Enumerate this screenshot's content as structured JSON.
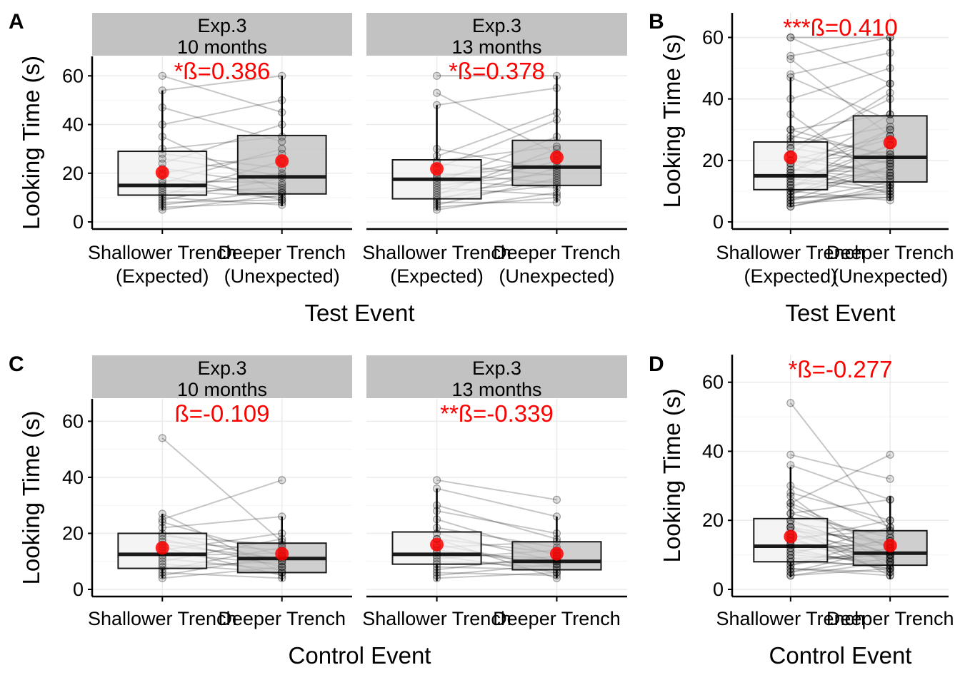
{
  "colors": {
    "strip_bg": "#c2c2c2",
    "box_fill_a": "#f0f0f0",
    "box_fill_b": "#bfbfbf",
    "mean_point": "#ff0000",
    "stat_text": "#ff0000",
    "gridline": "#ebebeb"
  },
  "chart_data": [
    {
      "id": "A",
      "type": "boxplot",
      "letter": "A",
      "xlabel": "Test Event",
      "ylabel": "Looking Time (s)",
      "ylim": [
        0,
        68
      ],
      "yticks": [
        0,
        20,
        40,
        60
      ],
      "categories": [
        "Shallower Trench\n(Expected)",
        "Deeper Trench\n(Unexpected)"
      ],
      "facets": [
        {
          "strip": [
            "Exp.3",
            "10 months"
          ],
          "annotation": "*ß=0.386",
          "boxes": [
            {
              "q1": 11,
              "median": 15,
              "q3": 29,
              "whisker_low": 5,
              "whisker_high": 54,
              "mean": 20.3
            },
            {
              "q1": 11.5,
              "median": 18.5,
              "q3": 35.5,
              "whisker_low": 6.5,
              "whisker_high": 60,
              "mean": 25
            }
          ],
          "pairs": [
            [
              5,
              11
            ],
            [
              6,
              8
            ],
            [
              7,
              13
            ],
            [
              8,
              9
            ],
            [
              9,
              18
            ],
            [
              10,
              7
            ],
            [
              11,
              25
            ],
            [
              12,
              14
            ],
            [
              13,
              10
            ],
            [
              14,
              20
            ],
            [
              15,
              12
            ],
            [
              16,
              30
            ],
            [
              17,
              16
            ],
            [
              19,
              9
            ],
            [
              20,
              28
            ],
            [
              22,
              15
            ],
            [
              24,
              40
            ],
            [
              26,
              19
            ],
            [
              28,
              22
            ],
            [
              30,
              35
            ],
            [
              35,
              12
            ],
            [
              40,
              50
            ],
            [
              47,
              33
            ],
            [
              54,
              60
            ],
            [
              60,
              45
            ]
          ]
        },
        {
          "strip": [
            "Exp.3",
            "13 months"
          ],
          "annotation": "*ß=0.378",
          "boxes": [
            {
              "q1": 9.5,
              "median": 17.5,
              "q3": 25.5,
              "whisker_low": 5,
              "whisker_high": 48,
              "mean": 21.8
            },
            {
              "q1": 15,
              "median": 22.5,
              "q3": 33.5,
              "whisker_low": 8,
              "whisker_high": 60,
              "mean": 26.5
            }
          ],
          "pairs": [
            [
              5,
              12
            ],
            [
              6,
              10
            ],
            [
              7,
              18
            ],
            [
              8,
              8
            ],
            [
              9,
              22
            ],
            [
              10,
              15
            ],
            [
              11,
              30
            ],
            [
              12,
              17
            ],
            [
              13,
              25
            ],
            [
              14,
              11
            ],
            [
              15,
              20
            ],
            [
              16,
              35
            ],
            [
              17,
              14
            ],
            [
              18,
              27
            ],
            [
              19,
              23
            ],
            [
              20,
              16
            ],
            [
              22,
              42
            ],
            [
              24,
              19
            ],
            [
              25,
              31
            ],
            [
              27,
              45
            ],
            [
              30,
              21
            ],
            [
              48,
              55
            ],
            [
              53,
              28
            ],
            [
              60,
              60
            ]
          ]
        }
      ]
    },
    {
      "id": "B",
      "type": "boxplot",
      "letter": "B",
      "xlabel": "Test Event",
      "ylabel": "Looking Time (s)",
      "ylim": [
        0,
        68
      ],
      "yticks": [
        0,
        20,
        40,
        60
      ],
      "categories": [
        "Shallower Trench\n(Expected)",
        "Deeper Trench\n(Unexpected)"
      ],
      "facets": [
        {
          "strip": [],
          "annotation": "***ß=0.410",
          "boxes": [
            {
              "q1": 10.5,
              "median": 15,
              "q3": 26,
              "whisker_low": 5,
              "whisker_high": 47,
              "mean": 21
            },
            {
              "q1": 13,
              "median": 21,
              "q3": 34.5,
              "whisker_low": 7,
              "whisker_high": 60,
              "mean": 25.8
            }
          ],
          "pairs": [
            [
              5,
              11
            ],
            [
              6,
              8
            ],
            [
              7,
              13
            ],
            [
              8,
              9
            ],
            [
              9,
              18
            ],
            [
              10,
              7
            ],
            [
              11,
              25
            ],
            [
              12,
              14
            ],
            [
              13,
              10
            ],
            [
              14,
              20
            ],
            [
              15,
              12
            ],
            [
              16,
              30
            ],
            [
              17,
              16
            ],
            [
              19,
              9
            ],
            [
              20,
              28
            ],
            [
              22,
              15
            ],
            [
              24,
              40
            ],
            [
              26,
              19
            ],
            [
              28,
              22
            ],
            [
              30,
              35
            ],
            [
              35,
              12
            ],
            [
              40,
              50
            ],
            [
              47,
              33
            ],
            [
              54,
              60
            ],
            [
              60,
              45
            ],
            [
              5,
              12
            ],
            [
              6,
              10
            ],
            [
              7,
              18
            ],
            [
              8,
              8
            ],
            [
              9,
              22
            ],
            [
              10,
              15
            ],
            [
              11,
              30
            ],
            [
              12,
              17
            ],
            [
              13,
              25
            ],
            [
              14,
              11
            ],
            [
              15,
              20
            ],
            [
              16,
              35
            ],
            [
              17,
              14
            ],
            [
              18,
              27
            ],
            [
              19,
              23
            ],
            [
              20,
              16
            ],
            [
              22,
              42
            ],
            [
              24,
              19
            ],
            [
              25,
              31
            ],
            [
              27,
              45
            ],
            [
              30,
              21
            ],
            [
              48,
              55
            ],
            [
              53,
              28
            ],
            [
              60,
              60
            ]
          ]
        }
      ]
    },
    {
      "id": "C",
      "type": "boxplot",
      "letter": "C",
      "xlabel": "Control Event",
      "ylabel": "Looking Time (s)",
      "ylim": [
        0,
        68
      ],
      "yticks": [
        0,
        20,
        40,
        60
      ],
      "categories": [
        "Shallower Trench",
        "Deeper Trench"
      ],
      "facets": [
        {
          "strip": [
            "Exp.3",
            "10 months"
          ],
          "annotation": "ß=-0.109",
          "boxes": [
            {
              "q1": 7.5,
              "median": 12.5,
              "q3": 20,
              "whisker_low": 4,
              "whisker_high": 27,
              "mean": 14.8
            },
            {
              "q1": 6,
              "median": 11,
              "q3": 16.5,
              "whisker_low": 3,
              "whisker_high": 26,
              "mean": 12.7
            }
          ],
          "pairs": [
            [
              4,
              8
            ],
            [
              5,
              12
            ],
            [
              6,
              4
            ],
            [
              7,
              15
            ],
            [
              8,
              10
            ],
            [
              9,
              6
            ],
            [
              10,
              18
            ],
            [
              11,
              7
            ],
            [
              12,
              13
            ],
            [
              13,
              9
            ],
            [
              14,
              20
            ],
            [
              15,
              5
            ],
            [
              16,
              11
            ],
            [
              17,
              14
            ],
            [
              18,
              8
            ],
            [
              19,
              16
            ],
            [
              20,
              10
            ],
            [
              22,
              26
            ],
            [
              24,
              12
            ],
            [
              27,
              6
            ],
            [
              54,
              17
            ],
            [
              25,
              39
            ]
          ]
        },
        {
          "strip": [
            "Exp.3",
            "13 months"
          ],
          "annotation": "**ß=-0.339",
          "boxes": [
            {
              "q1": 9,
              "median": 12.5,
              "q3": 20.5,
              "whisker_low": 3,
              "whisker_high": 36,
              "mean": 16
            },
            {
              "q1": 7,
              "median": 10,
              "q3": 17,
              "whisker_low": 4,
              "whisker_high": 26,
              "mean": 12.7
            }
          ],
          "pairs": [
            [
              4,
              6
            ],
            [
              5,
              9
            ],
            [
              6,
              5
            ],
            [
              7,
              12
            ],
            [
              8,
              7
            ],
            [
              9,
              10
            ],
            [
              10,
              8
            ],
            [
              11,
              14
            ],
            [
              12,
              6
            ],
            [
              13,
              11
            ],
            [
              14,
              9
            ],
            [
              15,
              17
            ],
            [
              16,
              8
            ],
            [
              18,
              13
            ],
            [
              20,
              10
            ],
            [
              22,
              15
            ],
            [
              25,
              12
            ],
            [
              28,
              20
            ],
            [
              30,
              18
            ],
            [
              36,
              26
            ],
            [
              39,
              32
            ],
            [
              18,
              4
            ]
          ]
        }
      ]
    },
    {
      "id": "D",
      "type": "boxplot",
      "letter": "D",
      "xlabel": "Control Event",
      "ylabel": "Looking Time (s)",
      "ylim": [
        0,
        68
      ],
      "yticks": [
        0,
        20,
        40,
        60
      ],
      "categories": [
        "Shallower Trench",
        "Deeper Trench"
      ],
      "facets": [
        {
          "strip": [],
          "annotation": "*ß=-0.277",
          "boxes": [
            {
              "q1": 8,
              "median": 12.5,
              "q3": 20.5,
              "whisker_low": 3.5,
              "whisker_high": 35.5,
              "mean": 15.3
            },
            {
              "q1": 7,
              "median": 10.5,
              "q3": 17,
              "whisker_low": 3,
              "whisker_high": 27,
              "mean": 12.7
            }
          ],
          "pairs": [
            [
              4,
              8
            ],
            [
              5,
              12
            ],
            [
              6,
              4
            ],
            [
              7,
              15
            ],
            [
              8,
              10
            ],
            [
              9,
              6
            ],
            [
              10,
              18
            ],
            [
              11,
              7
            ],
            [
              12,
              13
            ],
            [
              13,
              9
            ],
            [
              14,
              20
            ],
            [
              15,
              5
            ],
            [
              16,
              11
            ],
            [
              17,
              14
            ],
            [
              18,
              8
            ],
            [
              19,
              16
            ],
            [
              20,
              10
            ],
            [
              22,
              26
            ],
            [
              24,
              12
            ],
            [
              27,
              6
            ],
            [
              54,
              17
            ],
            [
              25,
              39
            ],
            [
              4,
              6
            ],
            [
              5,
              9
            ],
            [
              6,
              5
            ],
            [
              7,
              12
            ],
            [
              8,
              7
            ],
            [
              9,
              10
            ],
            [
              10,
              8
            ],
            [
              11,
              14
            ],
            [
              12,
              6
            ],
            [
              13,
              11
            ],
            [
              14,
              9
            ],
            [
              15,
              17
            ],
            [
              16,
              8
            ],
            [
              18,
              13
            ],
            [
              20,
              10
            ],
            [
              22,
              15
            ],
            [
              25,
              12
            ],
            [
              28,
              20
            ],
            [
              30,
              18
            ],
            [
              36,
              26
            ],
            [
              39,
              32
            ],
            [
              18,
              4
            ]
          ]
        }
      ]
    }
  ]
}
